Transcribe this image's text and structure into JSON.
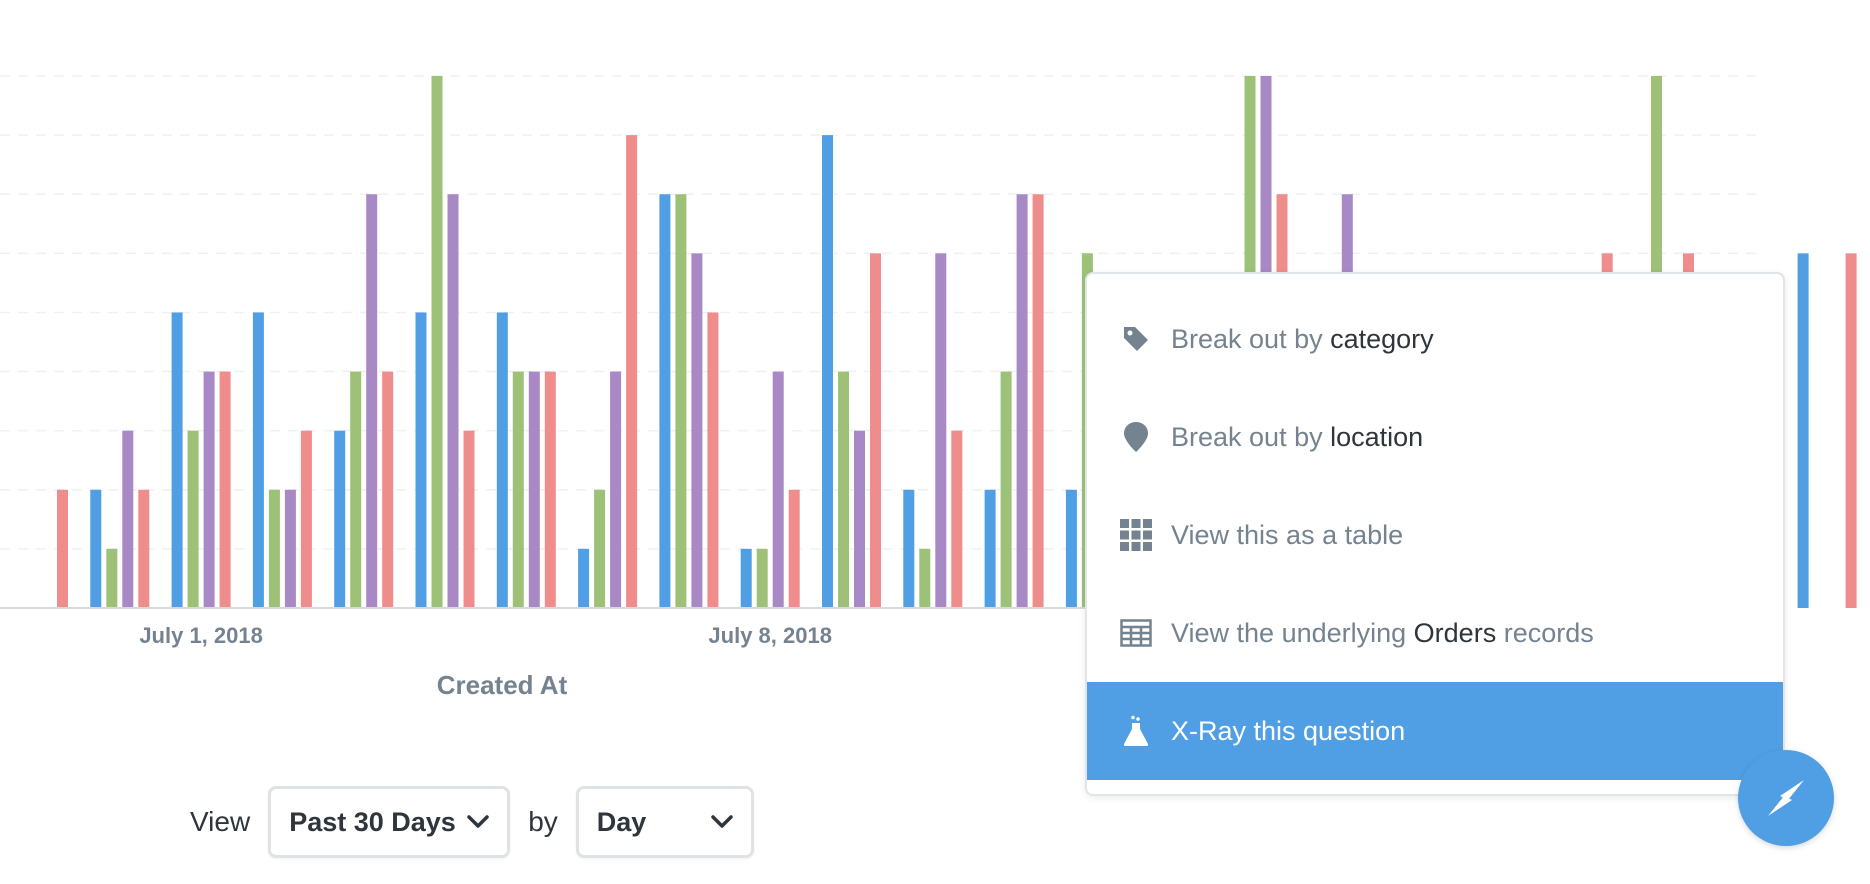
{
  "chart_data": {
    "type": "bar",
    "xlabel": "Created At",
    "ylabel": "",
    "ylim": [
      0,
      9
    ],
    "grid": true,
    "tick_labels": [
      "July 1, 2018",
      "July 8, 2018"
    ],
    "tick_dates": [
      "2018-07-01",
      "2018-07-08"
    ],
    "categories": [
      "2018-06-29",
      "2018-06-30",
      "2018-07-01",
      "2018-07-02",
      "2018-07-03",
      "2018-07-04",
      "2018-07-05",
      "2018-07-06",
      "2018-07-07",
      "2018-07-08",
      "2018-07-09",
      "2018-07-10",
      "2018-07-11",
      "2018-07-12",
      "2018-07-13",
      "2018-07-14",
      "2018-07-15",
      "2018-07-16",
      "2018-07-17",
      "2018-07-18",
      "2018-07-19",
      "2018-07-20",
      "2018-07-21"
    ],
    "series": [
      {
        "color": "#509ee3",
        "values": [
          null,
          2,
          5,
          5,
          3,
          5,
          5,
          1,
          7,
          1,
          8,
          2,
          2,
          2,
          3,
          null,
          null,
          null,
          null,
          null,
          null,
          null,
          6
        ]
      },
      {
        "color": "#9cc177",
        "values": [
          null,
          1,
          3,
          2,
          4,
          9,
          4,
          2,
          7,
          1,
          4,
          1,
          4,
          6,
          null,
          9,
          null,
          null,
          null,
          null,
          9,
          null,
          null
        ]
      },
      {
        "color": "#a989c5",
        "values": [
          null,
          3,
          4,
          2,
          7,
          7,
          4,
          4,
          6,
          4,
          3,
          6,
          7,
          2,
          null,
          9,
          7,
          null,
          null,
          null,
          null,
          null,
          null
        ]
      },
      {
        "color": "#ef8c8c",
        "values": [
          2,
          2,
          4,
          3,
          4,
          3,
          4,
          8,
          5,
          2,
          6,
          3,
          7,
          2,
          null,
          7,
          null,
          null,
          null,
          6,
          6,
          null,
          6
        ]
      }
    ]
  },
  "popover": {
    "items": [
      {
        "text": "Break out by ",
        "strong": "category",
        "rest": ""
      },
      {
        "text": "Break out by ",
        "strong": "location",
        "rest": ""
      },
      {
        "text": "View this as a table",
        "strong": "",
        "rest": ""
      },
      {
        "text": "View the underlying ",
        "strong": "Orders",
        "rest": " records"
      },
      {
        "text": "X-Ray this question",
        "strong": "",
        "rest": ""
      }
    ]
  },
  "controls": {
    "view_label": "View",
    "range_value": "Past 30 Days",
    "by_label": "by",
    "unit_value": "Day"
  },
  "icons": {
    "category": "tag-icon",
    "location": "pin-icon",
    "table": "grid-icon",
    "records": "table-icon",
    "xray": "beaker-icon",
    "fab": "compass-icon"
  }
}
